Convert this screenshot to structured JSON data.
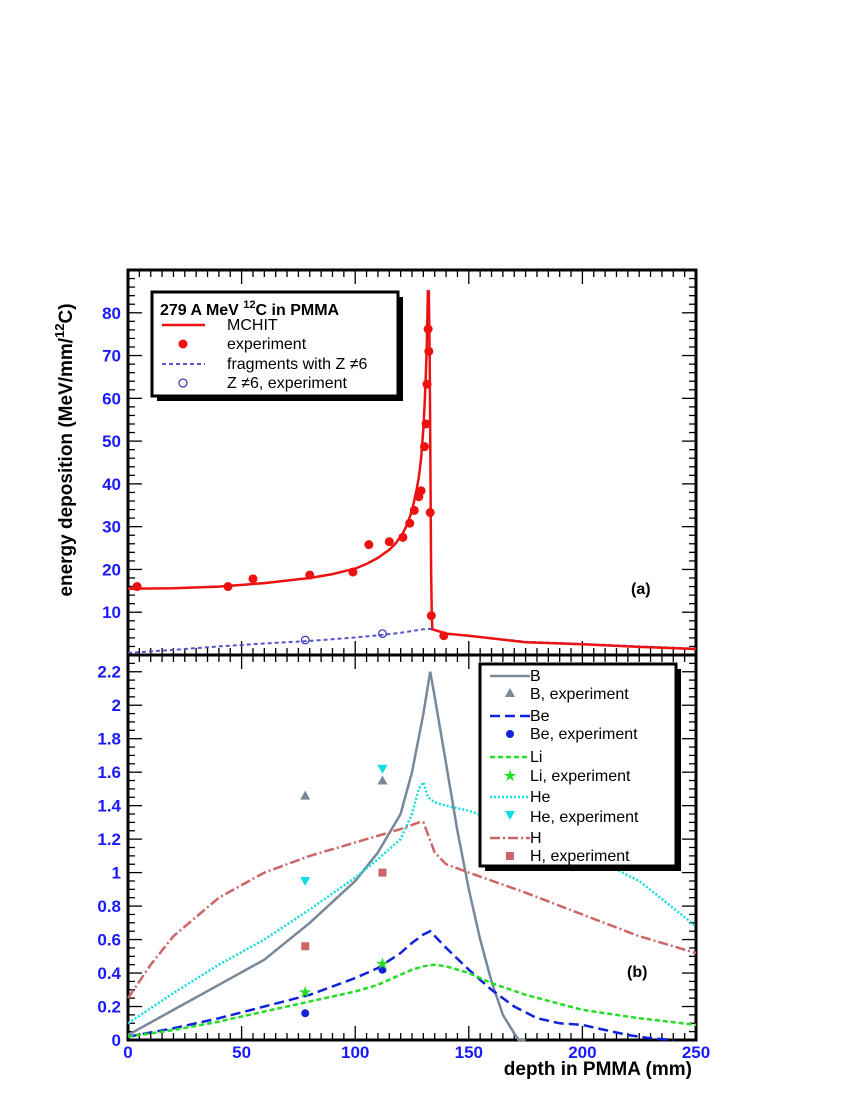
{
  "chart_data": [
    {
      "panel": "a",
      "type": "line",
      "panel_label": "(a)",
      "ylabel": "energy deposition (MeV/mm/",
      "ylabel_sup": "12",
      "ylabel_end": "C)",
      "xlim": [
        0,
        250
      ],
      "ylim": [
        0,
        90
      ],
      "yticks": [
        10,
        20,
        30,
        40,
        50,
        60,
        70,
        80
      ],
      "legend": {
        "title_pre": "279 A MeV ",
        "title_sup": "12",
        "title_post": "C in PMMA",
        "placement": "top-left",
        "entries": [
          "MCHIT",
          "experiment",
          "fragments with Z ≠6",
          " Z ≠6, experiment"
        ]
      },
      "colors": {
        "mchit": "#ee1111",
        "experiment": "#ee1111",
        "fragments": "#5555cc",
        "fragments_exp": "#3333bb"
      },
      "series": [
        {
          "name": "MCHIT",
          "style": "line",
          "x": [
            0,
            20,
            40,
            60,
            80,
            90,
            100,
            105,
            110,
            115,
            118,
            121,
            123,
            125,
            127,
            128,
            129,
            130,
            130.5,
            131,
            131.5,
            132,
            132.4,
            132.8,
            133.1,
            133.4,
            133.7,
            134,
            140,
            150,
            175,
            200,
            225,
            250
          ],
          "y": [
            15.5,
            15.6,
            16,
            16.8,
            18,
            18.9,
            20.2,
            21.3,
            22.7,
            24.6,
            26.2,
            28.5,
            30.7,
            33.7,
            38.5,
            41.5,
            46,
            53,
            58,
            64,
            72,
            85,
            85,
            70,
            45,
            20,
            9,
            6,
            5,
            4.5,
            3,
            2.5,
            1.9,
            1.4
          ]
        },
        {
          "name": "experiment",
          "style": "markers",
          "x": [
            4,
            44,
            55,
            80,
            99,
            106,
            115,
            121,
            124,
            126,
            128,
            129,
            130.5,
            131.2,
            131.6,
            132.1,
            132.4,
            133,
            133.5,
            139
          ],
          "y": [
            16,
            16,
            17.8,
            18.7,
            19.4,
            25.8,
            26.5,
            27.5,
            30.8,
            33.8,
            37,
            38.4,
            48.7,
            54,
            63.3,
            76.2,
            71,
            33.3,
            9.2,
            4.5
          ]
        },
        {
          "name": "fragments with Z ≠6",
          "style": "dashed",
          "x": [
            0,
            20,
            40,
            60,
            80,
            100,
            110,
            120,
            125,
            130,
            133,
            140,
            150,
            175,
            200,
            225,
            250
          ],
          "y": [
            0.5,
            1.2,
            2.0,
            2.7,
            3.3,
            4.1,
            4.6,
            5.2,
            5.6,
            6.0,
            6.1,
            5.0,
            4.5,
            3.1,
            2.6,
            2.0,
            1.5
          ]
        },
        {
          "name": " Z ≠6, experiment",
          "style": "open-circles",
          "x": [
            78,
            112
          ],
          "y": [
            3.5,
            5.0
          ]
        }
      ]
    },
    {
      "panel": "b",
      "type": "line",
      "panel_label": "(b)",
      "xlabel": "depth in PMMA (mm)",
      "xlim": [
        0,
        250
      ],
      "ylim": [
        0,
        2.3
      ],
      "xticks": [
        0,
        50,
        100,
        150,
        200,
        250
      ],
      "yticks": [
        0,
        0.2,
        0.4,
        0.6,
        0.8,
        1,
        1.2,
        1.4,
        1.6,
        1.8,
        2,
        2.2
      ],
      "ytick_labels": [
        "0",
        "0.2",
        "0.4",
        "0.6",
        "0.8",
        "1",
        "1.2",
        "1.4",
        "1.6",
        "1.8",
        "2",
        "2.2"
      ],
      "legend": {
        "placement": "top-right",
        "entries": [
          "B",
          "B, experiment",
          "Be",
          "Be, experiment",
          "Li",
          "Li, experiment",
          "He",
          "He, experiment",
          "H",
          "H, experiment"
        ]
      },
      "colors": {
        "B": "#778899",
        "Be": "#1122dd",
        "Li": "#22dd22",
        "He": "#11dddd",
        "H": "#cc6666"
      },
      "series": [
        {
          "name": "B",
          "style": "solid",
          "x": [
            0,
            20,
            40,
            60,
            80,
            100,
            110,
            120,
            125,
            130,
            133,
            135,
            140,
            145,
            150,
            155,
            160,
            165,
            170,
            172,
            175
          ],
          "y": [
            0.03,
            0.18,
            0.33,
            0.48,
            0.7,
            0.95,
            1.12,
            1.35,
            1.6,
            1.95,
            2.2,
            2.05,
            1.65,
            1.25,
            0.9,
            0.6,
            0.35,
            0.15,
            0.04,
            0.0,
            0.0
          ]
        },
        {
          "name": "B, experiment",
          "style": "markers-triangle-up",
          "x": [
            78,
            112
          ],
          "y": [
            1.46,
            1.55
          ]
        },
        {
          "name": "Be",
          "style": "long-dash",
          "x": [
            0,
            20,
            40,
            60,
            80,
            100,
            110,
            120,
            125,
            130,
            133,
            140,
            150,
            160,
            170,
            180,
            190,
            200,
            210,
            220,
            230,
            240
          ],
          "y": [
            0.02,
            0.07,
            0.13,
            0.2,
            0.27,
            0.37,
            0.43,
            0.52,
            0.58,
            0.63,
            0.65,
            0.55,
            0.42,
            0.3,
            0.2,
            0.13,
            0.1,
            0.09,
            0.06,
            0.03,
            0.01,
            0.0
          ]
        },
        {
          "name": "Be, experiment",
          "style": "markers-circle",
          "x": [
            78,
            112
          ],
          "y": [
            0.16,
            0.42
          ]
        },
        {
          "name": "Li",
          "style": "dashed",
          "x": [
            0,
            20,
            40,
            60,
            80,
            100,
            110,
            120,
            125,
            130,
            135,
            140,
            150,
            160,
            175,
            200,
            225,
            250
          ],
          "y": [
            0.02,
            0.06,
            0.11,
            0.17,
            0.23,
            0.29,
            0.33,
            0.39,
            0.42,
            0.44,
            0.45,
            0.44,
            0.4,
            0.34,
            0.27,
            0.18,
            0.13,
            0.09
          ]
        },
        {
          "name": "Li, experiment",
          "style": "markers-star",
          "x": [
            78,
            112
          ],
          "y": [
            0.29,
            0.46
          ]
        },
        {
          "name": "He",
          "style": "dotted",
          "x": [
            0,
            20,
            40,
            60,
            80,
            100,
            110,
            120,
            125,
            128,
            130,
            132,
            135,
            140,
            150,
            175,
            200,
            225,
            250
          ],
          "y": [
            0.1,
            0.28,
            0.45,
            0.6,
            0.78,
            0.97,
            1.08,
            1.2,
            1.35,
            1.5,
            1.54,
            1.45,
            1.42,
            1.4,
            1.37,
            1.25,
            1.12,
            0.95,
            0.68
          ]
        },
        {
          "name": "He, experiment",
          "style": "markers-triangle-down",
          "x": [
            78,
            112
          ],
          "y": [
            0.95,
            1.62
          ]
        },
        {
          "name": "H",
          "style": "dash-dot",
          "x": [
            0,
            10,
            20,
            40,
            60,
            80,
            100,
            120,
            128,
            130,
            135,
            140,
            150,
            175,
            200,
            225,
            250
          ],
          "y": [
            0.25,
            0.45,
            0.62,
            0.85,
            1.0,
            1.1,
            1.18,
            1.26,
            1.3,
            1.3,
            1.12,
            1.05,
            1.0,
            0.88,
            0.75,
            0.62,
            0.52
          ]
        },
        {
          "name": "H, experiment",
          "style": "markers-square",
          "x": [
            78,
            112
          ],
          "y": [
            0.56,
            1.0
          ]
        }
      ]
    }
  ]
}
